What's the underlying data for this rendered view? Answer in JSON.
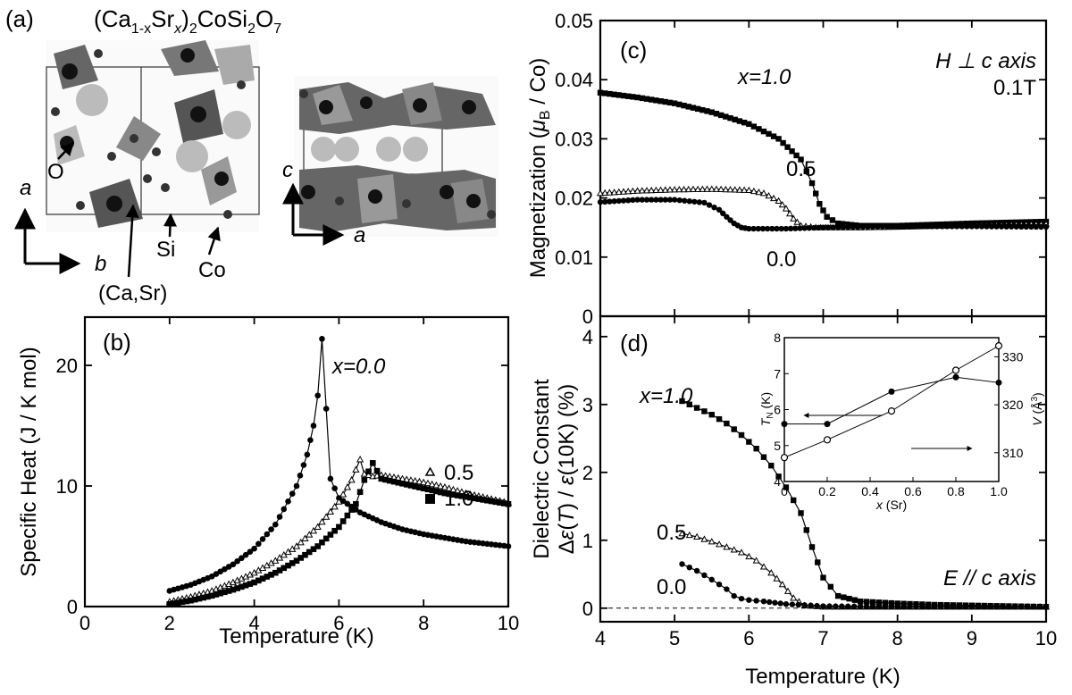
{
  "panels": {
    "a": {
      "label": "(a)",
      "formula_parts": [
        "(Ca",
        "1-x",
        "Sr",
        "x",
        ")",
        "2",
        "CoSi",
        "2",
        "O",
        "7"
      ],
      "left_view": {
        "axis_vertical": "a",
        "axis_horizontal": "b",
        "labels": {
          "oxygen": "O",
          "silicon": "Si",
          "cobalt": "Co",
          "casr": "(Ca,Sr)"
        }
      },
      "right_view": {
        "axis_vertical": "c",
        "axis_horizontal": "a"
      }
    },
    "b": {
      "label": "(b)",
      "annot_x0": "x=0.0",
      "legend_05": "0.5",
      "legend_10": "1.0"
    },
    "c": {
      "label": "(c)",
      "annot_field_1": "H ⊥ c axis",
      "annot_field_2": "0.1T",
      "curve_labels": {
        "x10": "x=1.0",
        "x05": "0.5",
        "x00": "0.0"
      }
    },
    "d": {
      "label": "(d)",
      "annot_field": "E // c axis",
      "curve_labels": {
        "x10": "x=1.0",
        "x05": "0.5",
        "x00": "0.0"
      }
    }
  },
  "chart_data": [
    {
      "id": "b",
      "type": "scatter",
      "title": "",
      "xlabel": "Temperature (K)",
      "ylabel": "Specific Heat (J / K mol)",
      "xlim": [
        0,
        10
      ],
      "ylim": [
        0,
        24
      ],
      "xticks": [
        0,
        2,
        4,
        6,
        8,
        10
      ],
      "yticks": [
        0,
        10,
        20
      ],
      "series": [
        {
          "name": "x=0.0",
          "marker": "circle-filled",
          "x": [
            2.0,
            2.5,
            3.0,
            3.5,
            4.0,
            4.5,
            5.0,
            5.25,
            5.4,
            5.5,
            5.6,
            5.8,
            6.0,
            6.5,
            7.0,
            7.5,
            8.0,
            8.5,
            9.0,
            9.5,
            10.0
          ],
          "y": [
            1.3,
            1.8,
            2.5,
            3.5,
            4.8,
            6.8,
            10.0,
            12.6,
            15.0,
            17.5,
            22.2,
            10.6,
            9.0,
            7.8,
            7.0,
            6.4,
            6.0,
            5.7,
            5.4,
            5.2,
            5.0
          ]
        },
        {
          "name": "0.5",
          "marker": "triangle-open",
          "x": [
            2.0,
            2.5,
            3.0,
            3.5,
            4.0,
            4.5,
            5.0,
            5.5,
            6.0,
            6.3,
            6.5,
            6.6,
            6.8,
            7.0,
            7.5,
            8.0,
            8.5,
            9.0,
            9.5,
            10.0
          ],
          "y": [
            0.4,
            0.8,
            1.3,
            2.0,
            2.8,
            3.8,
            5.0,
            6.6,
            8.7,
            10.5,
            12.2,
            11.0,
            10.8,
            10.9,
            10.6,
            10.3,
            9.9,
            9.4,
            9.0,
            8.6
          ]
        },
        {
          "name": "1.0",
          "marker": "square-filled",
          "x": [
            2.0,
            2.5,
            3.0,
            3.5,
            4.0,
            4.5,
            5.0,
            5.5,
            6.0,
            6.4,
            6.6,
            6.8,
            7.0,
            7.5,
            8.0,
            8.5,
            9.0,
            9.5,
            10.0
          ],
          "y": [
            0.2,
            0.5,
            0.9,
            1.4,
            2.0,
            2.8,
            3.8,
            5.0,
            6.6,
            8.5,
            10.5,
            11.9,
            10.6,
            10.2,
            9.8,
            9.4,
            9.1,
            8.8,
            8.5
          ]
        }
      ]
    },
    {
      "id": "c",
      "type": "line",
      "title": "",
      "xlabel": "",
      "ylabel": "Magnetization (μB / Co)",
      "xlim": [
        4,
        10
      ],
      "ylim": [
        0,
        0.05
      ],
      "xticks": [
        4,
        5,
        6,
        7,
        8,
        9,
        10
      ],
      "yticks": [
        0,
        0.01,
        0.02,
        0.03,
        0.04,
        0.05
      ],
      "ytick_labels": [
        "0",
        "0.01",
        "0.02",
        "0.03",
        "0.04",
        "0.05"
      ],
      "series": [
        {
          "name": "x=1.0",
          "marker": "square-filled",
          "x": [
            4.0,
            4.5,
            5.0,
            5.5,
            6.0,
            6.4,
            6.7,
            6.85,
            6.95,
            7.05,
            7.2,
            7.5,
            8.0,
            9.0,
            10.0
          ],
          "y": [
            0.0378,
            0.037,
            0.036,
            0.0345,
            0.0325,
            0.03,
            0.0265,
            0.0225,
            0.019,
            0.0168,
            0.0157,
            0.0153,
            0.0153,
            0.0157,
            0.016
          ]
        },
        {
          "name": "0.5",
          "marker": "triangle-open",
          "x": [
            4.0,
            4.5,
            5.0,
            5.5,
            6.0,
            6.2,
            6.4,
            6.5,
            6.6,
            6.7,
            6.9,
            7.5,
            8.0,
            9.0,
            10.0
          ],
          "y": [
            0.0208,
            0.0212,
            0.0214,
            0.0215,
            0.0213,
            0.0208,
            0.0195,
            0.0182,
            0.0165,
            0.0153,
            0.015,
            0.015,
            0.0151,
            0.0154,
            0.0156
          ]
        },
        {
          "name": "0.0",
          "marker": "circle-filled",
          "x": [
            4.0,
            4.5,
            5.0,
            5.4,
            5.6,
            5.7,
            5.8,
            5.9,
            6.0,
            6.5,
            7.0,
            8.0,
            9.0,
            10.0
          ],
          "y": [
            0.0193,
            0.0197,
            0.0197,
            0.0192,
            0.018,
            0.0168,
            0.0157,
            0.015,
            0.0148,
            0.0148,
            0.015,
            0.0152,
            0.0152,
            0.0151
          ]
        }
      ]
    },
    {
      "id": "d",
      "type": "line",
      "title": "",
      "xlabel": "Temperature (K)",
      "ylabel": "Dielectric Constant Δε(T) / ε(10K) (%)",
      "xlim": [
        4,
        10
      ],
      "ylim": [
        -0.2,
        4.3
      ],
      "xticks": [
        4,
        5,
        6,
        7,
        8,
        9,
        10
      ],
      "yticks": [
        0,
        1,
        2,
        3,
        4
      ],
      "series": [
        {
          "name": "x=1.0",
          "marker": "square-filled",
          "x": [
            5.1,
            5.3,
            5.5,
            5.7,
            5.9,
            6.1,
            6.3,
            6.5,
            6.7,
            6.85,
            7.0,
            7.2,
            7.5,
            8.0,
            8.5,
            9.0,
            9.5,
            10.0
          ],
          "y": [
            3.05,
            2.95,
            2.85,
            2.72,
            2.55,
            2.35,
            2.1,
            1.78,
            1.4,
            0.9,
            0.45,
            0.18,
            0.1,
            0.07,
            0.05,
            0.04,
            0.03,
            0.02
          ]
        },
        {
          "name": "0.5",
          "marker": "triangle-open",
          "x": [
            5.1,
            5.3,
            5.5,
            5.7,
            5.9,
            6.1,
            6.3,
            6.45,
            6.6,
            6.75,
            7.0,
            7.5,
            8.0,
            9.0,
            10.0
          ],
          "y": [
            1.1,
            1.05,
            0.98,
            0.9,
            0.82,
            0.7,
            0.52,
            0.35,
            0.15,
            0.04,
            0.02,
            0.02,
            0.02,
            0.02,
            0.02
          ]
        },
        {
          "name": "0.0",
          "marker": "circle-filled",
          "x": [
            5.1,
            5.3,
            5.5,
            5.7,
            5.8,
            5.9,
            6.0,
            6.2,
            6.5,
            7.0,
            8.0,
            9.0,
            10.0
          ],
          "y": [
            0.65,
            0.55,
            0.42,
            0.28,
            0.18,
            0.14,
            0.12,
            0.1,
            0.06,
            0.03,
            0.02,
            0.02,
            0.02
          ]
        }
      ],
      "inset": {
        "type": "line",
        "xlabel": "x (Sr)",
        "ylabel_left": "TN (K)",
        "ylabel_right": "V (Å3)",
        "xlim": [
          0,
          1
        ],
        "ylim_left": [
          4,
          8
        ],
        "ylim_right": [
          304,
          334
        ],
        "xticks": [
          0,
          0.2,
          0.4,
          0.6,
          0.8,
          1.0
        ],
        "xtick_labels": [
          "0",
          "0.2",
          "0.4",
          "0.6",
          "0.8",
          "1.0"
        ],
        "yticks_left": [
          4,
          5,
          6,
          7,
          8
        ],
        "yticks_right": [
          310,
          320,
          330
        ],
        "series": [
          {
            "name": "TN",
            "marker": "circle-filled",
            "axis": "left",
            "x": [
              0,
              0.2,
              0.5,
              0.8,
              1.0
            ],
            "y": [
              5.6,
              5.6,
              6.5,
              6.9,
              6.75
            ]
          },
          {
            "name": "V",
            "marker": "circle-open",
            "axis": "right",
            "x": [
              0,
              0.2,
              0.5,
              0.8,
              1.0
            ],
            "y": [
              309.0,
              312.7,
              318.7,
              327.2,
              332.3
            ]
          }
        ]
      }
    }
  ]
}
